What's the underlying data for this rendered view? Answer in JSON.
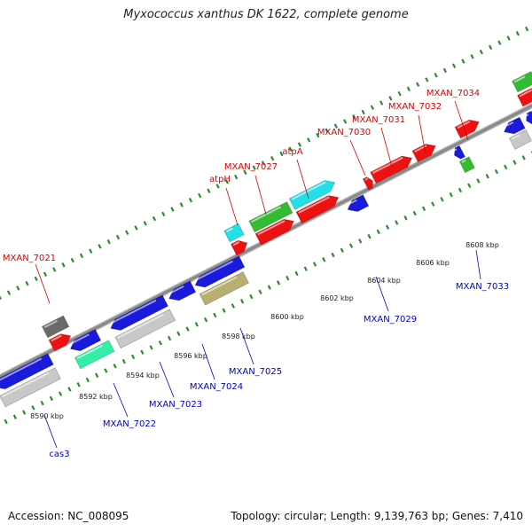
{
  "title": "Myxococcus xanthus DK 1622, complete genome",
  "footer": {
    "accession": "Accession: NC_008095",
    "summary": "Topology: circular; Length: 9,139,763 bp; Genes: 7,410"
  },
  "colors": {
    "backbone": "#8a8a8a",
    "tick": "#2e8b2e",
    "forward_label": "#dd0000",
    "reverse_label": "#0000cc",
    "blue": "#1a1adb",
    "red": "#ee1111",
    "cyan": "#22e0e8",
    "green": "#33bb33",
    "grey": "#c8c8c8",
    "dark": "#6a6a6a",
    "teal": "#33eea8",
    "khaki": "#b8b070"
  },
  "scale_labels": [
    "8590 kbp",
    "8592 kbp",
    "8594 kbp",
    "8596 kbp",
    "8598 kbp",
    "8600 kbp",
    "8602 kbp",
    "8604 kbp",
    "8606 kbp",
    "8608 kbp"
  ],
  "forward_labels": [
    "MXAN_7021",
    "atpH",
    "MXAN_7027",
    "atpA",
    "MXAN_7030",
    "MXAN_7031",
    "MXAN_7032",
    "MXAN_7034"
  ],
  "reverse_labels": [
    "cas3",
    "MXAN_7022",
    "MXAN_7023",
    "MXAN_7024",
    "MXAN_7025",
    "MXAN_7029",
    "MXAN_7033"
  ]
}
